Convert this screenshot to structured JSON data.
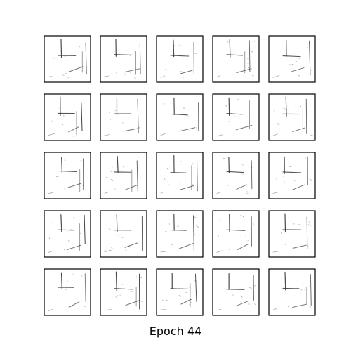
{
  "figure": {
    "caption": "Epoch 44",
    "rows": 5,
    "cols": 5,
    "background_color": "#ffffff",
    "frame_color": "#000000",
    "ink_color": "#2b2b2b"
  }
}
